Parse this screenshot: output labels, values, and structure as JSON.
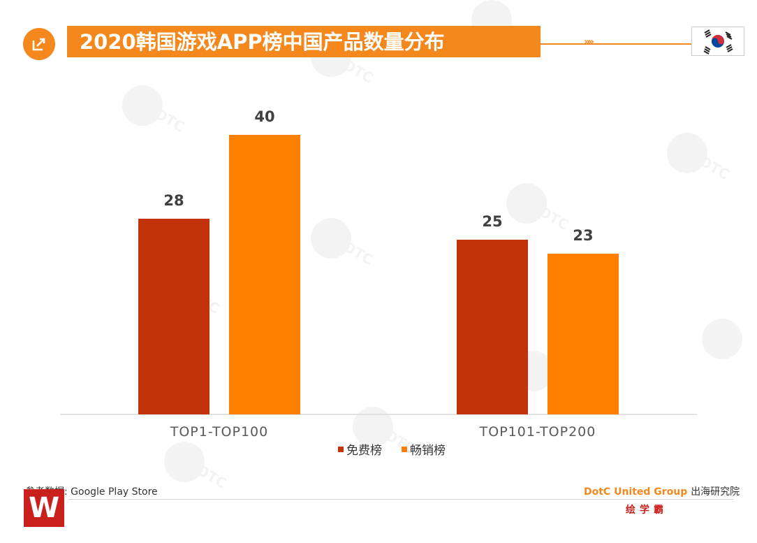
{
  "header": {
    "title": "2020韩国游戏APP榜中国产品数量分布",
    "chevron": "»»",
    "icon": "share-icon",
    "flag": "south-korea-flag-icon"
  },
  "chart_data": {
    "type": "bar",
    "categories": [
      "TOP1-TOP100",
      "TOP101-TOP200"
    ],
    "series": [
      {
        "name": "免费榜",
        "values": [
          28,
          25
        ],
        "color": "#c33309"
      },
      {
        "name": "畅销榜",
        "values": [
          40,
          23
        ],
        "color": "#ff8000"
      }
    ],
    "ylim": [
      0,
      40
    ],
    "grid": false,
    "legend_position": "bottom"
  },
  "footer": {
    "source": "参考数据: Google Play Store",
    "brand_en": "DotC United Group",
    "brand_cn": "出海研究院",
    "brand2": "绘学霸",
    "logo": "W"
  }
}
